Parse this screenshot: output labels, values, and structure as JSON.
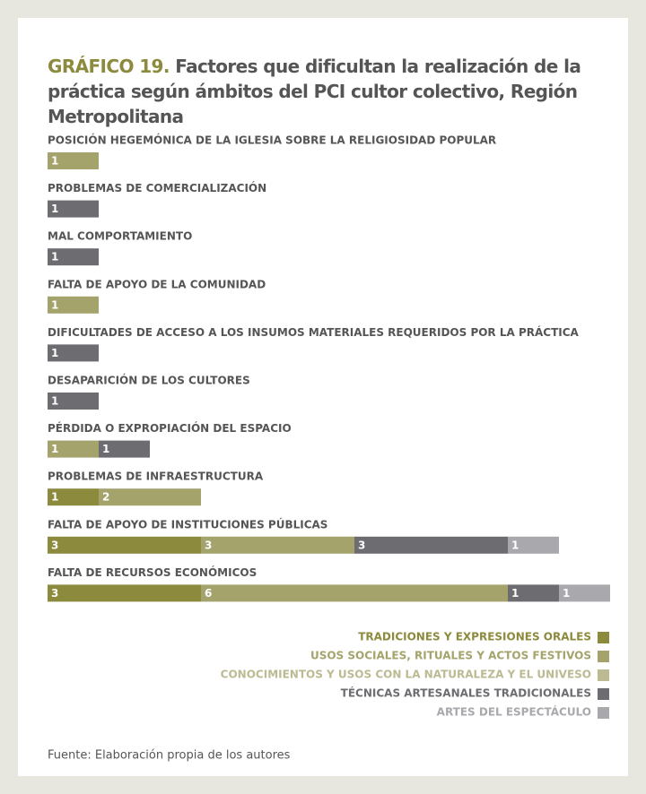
{
  "chart_data": {
    "type": "stacked-bar-horizontal",
    "title_label": "GRÁFICO 19.",
    "title": "Factores que dificultan la realización de la práctica según ámbitos del PCI cultor colectivo, Región Metropolitana",
    "categories": [
      "POSICIÓN HEGEMÓNICA DE LA IGLESIA SOBRE LA RELIGIOSIDAD POPULAR",
      "PROBLEMAS DE COMERCIALIZACIÓN",
      "MAL COMPORTAMIENTO",
      "FALTA DE APOYO  DE LA COMUNIDAD",
      "DIFICULTADES DE ACCESO A LOS INSUMOS MATERIALES REQUERIDOS POR LA PRÁCTICA",
      "DESAPARICIÓN DE LOS CULTORES",
      "PÉRDIDA O EXPROPIACIÓN DEL ESPACIO",
      "PROBLEMAS DE INFRAESTRUCTURA",
      "FALTA DE APOYO DE INSTITUCIONES PÚBLICAS",
      "FALTA DE RECURSOS ECONÓMICOS"
    ],
    "series": [
      {
        "name": "TRADICIONES Y EXPRESIONES ORALES",
        "color": "#8c8a3c",
        "values": [
          null,
          null,
          null,
          null,
          null,
          null,
          null,
          1,
          3,
          3
        ]
      },
      {
        "name": "USOS SOCIALES, RITUALES Y ACTOS FESTIVOS",
        "color": "#a4a36c",
        "values": [
          1,
          null,
          null,
          1,
          null,
          null,
          1,
          2,
          3,
          6
        ]
      },
      {
        "name": "CONOCIMIENTOS Y USOS CON LA NATURALEZA Y EL UNIVESO",
        "color": "#bbba92",
        "values": [
          null,
          null,
          null,
          null,
          null,
          null,
          null,
          null,
          null,
          null
        ]
      },
      {
        "name": "TÉCNICAS ARTESANALES TRADICIONALES",
        "color": "#6c6c71",
        "values": [
          null,
          1,
          1,
          null,
          1,
          1,
          1,
          null,
          3,
          1
        ]
      },
      {
        "name": "ARTES DEL ESPECTÁCULO",
        "color": "#a8a8ad",
        "values": [
          null,
          null,
          null,
          null,
          null,
          null,
          null,
          null,
          1,
          1
        ]
      }
    ],
    "xlim": [
      0,
      11
    ],
    "source": "Fuente: Elaboración propia de los autores"
  }
}
